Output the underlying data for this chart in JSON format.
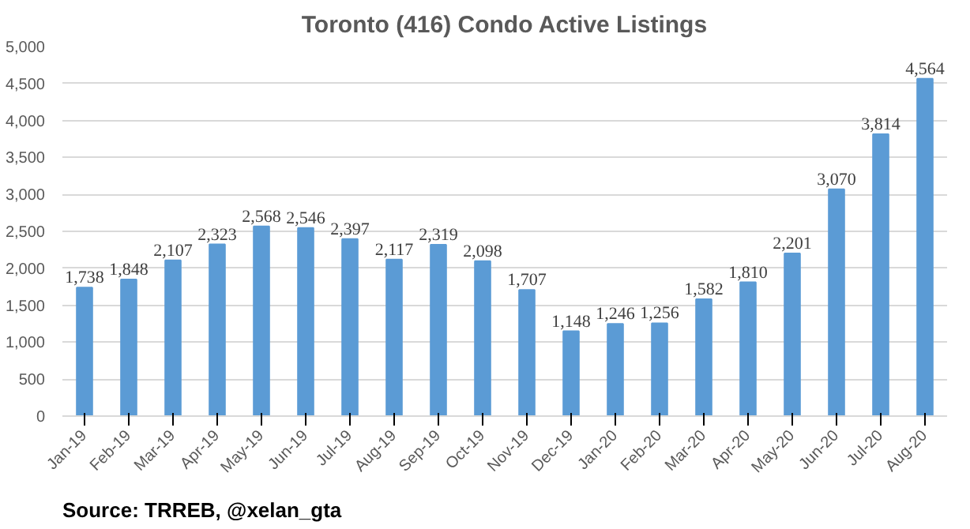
{
  "chart_data": {
    "type": "bar",
    "title": "Toronto (416) Condo Active Listings",
    "categories": [
      "Jan-19",
      "Feb-19",
      "Mar-19",
      "Apr-19",
      "May-19",
      "Jun-19",
      "Jul-19",
      "Aug-19",
      "Sep-19",
      "Oct-19",
      "Nov-19",
      "Dec-19",
      "Jan-20",
      "Feb-20",
      "Mar-20",
      "Apr-20",
      "May-20",
      "Jun-20",
      "Jul-20",
      "Aug-20"
    ],
    "values": [
      1738,
      1848,
      2107,
      2323,
      2568,
      2546,
      2397,
      2117,
      2319,
      2098,
      1707,
      1148,
      1246,
      1256,
      1582,
      1810,
      2201,
      3070,
      3814,
      4564
    ],
    "value_labels": [
      "1,738",
      "1,848",
      "2,107",
      "2,323",
      "2,568",
      "2,546",
      "2,397",
      "2,117",
      "2,319",
      "2,098",
      "1,707",
      "1,148",
      "1,246",
      "1,256",
      "1,582",
      "1,810",
      "2,201",
      "3,070",
      "3,814",
      "4,564"
    ],
    "color": "#5b9bd5",
    "ylim": [
      0,
      5000
    ],
    "yticks": [
      0,
      500,
      {
        "value": 1000,
        "label": "1,000"
      },
      {
        "value": 1500,
        "label": "1,500"
      },
      {
        "value": 2000,
        "label": "2,000"
      },
      {
        "value": 2500,
        "label": "2,500"
      },
      {
        "value": 3000,
        "label": "3,000"
      },
      {
        "value": 3500,
        "label": "3,500"
      },
      {
        "value": 4000,
        "label": "4,000"
      },
      {
        "value": 4500,
        "label": "4,500"
      },
      {
        "value": 5000,
        "label": "5,000"
      }
    ],
    "grid": "y",
    "annotations": [
      "Source: TRREB, @xelan_gta"
    ]
  }
}
